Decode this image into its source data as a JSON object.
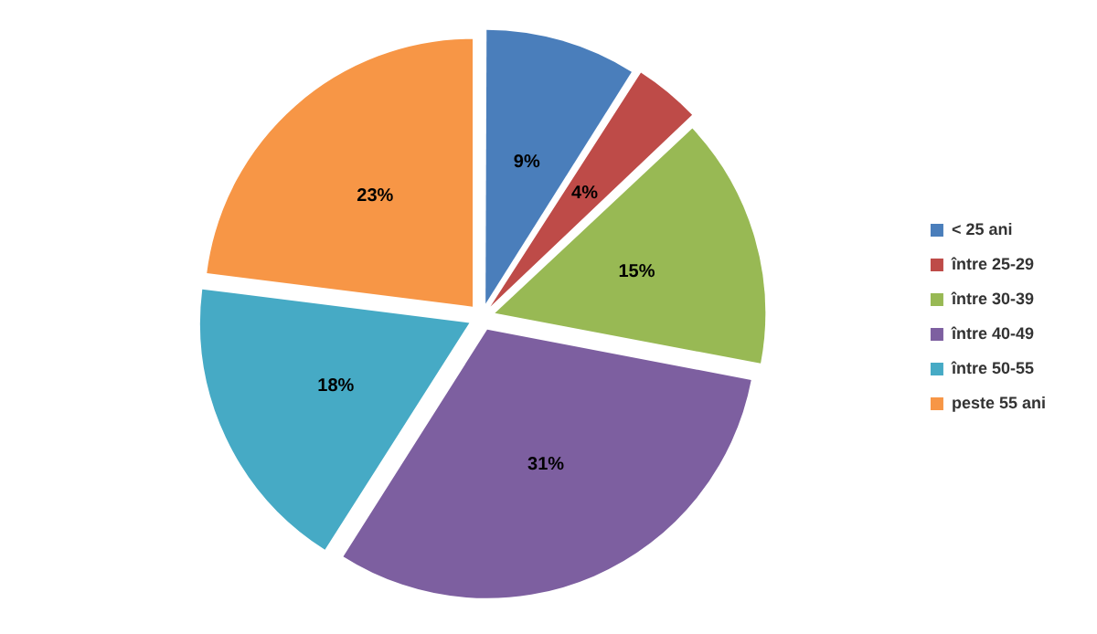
{
  "chart_data": {
    "type": "pie",
    "categories": [
      "< 25 ani",
      "între 25-29",
      "între 30-39",
      "între 40-49",
      "între 50-55",
      "peste 55 ani"
    ],
    "values": [
      9,
      4,
      15,
      31,
      18,
      23
    ],
    "colors": [
      "#4a7ebb",
      "#be4b48",
      "#98b954",
      "#7d5fa0",
      "#46aac5",
      "#f79646"
    ],
    "value_labels": [
      "9%",
      "4%",
      "15%",
      "31%",
      "18%",
      "23%"
    ],
    "legend": "right"
  }
}
